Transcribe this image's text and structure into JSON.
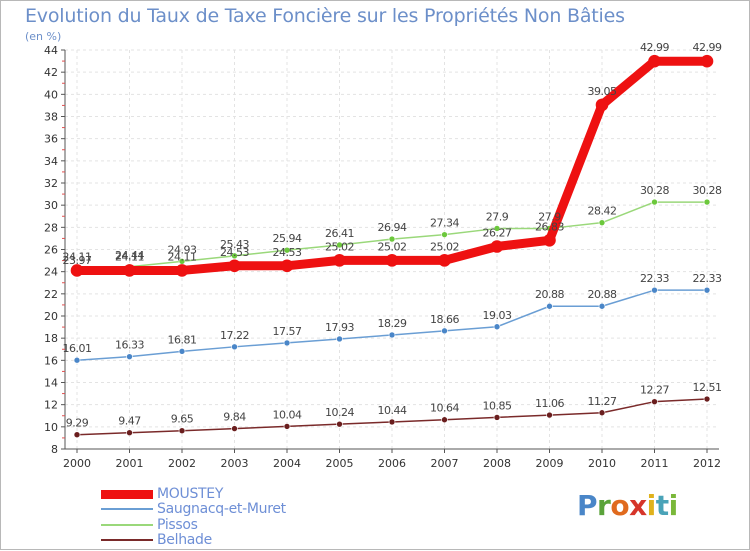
{
  "title": "Evolution du Taux de Taxe Foncière sur les Propriétés Non Bâties",
  "unit": "(en %)",
  "logo": {
    "letters": [
      {
        "ch": "P",
        "color": "#4a86c8"
      },
      {
        "ch": "r",
        "color": "#5aa33a"
      },
      {
        "ch": "o",
        "color": "#e06a1e"
      },
      {
        "ch": "x",
        "color": "#d6352a"
      },
      {
        "ch": "i",
        "color": "#e0b21c"
      },
      {
        "ch": "t",
        "color": "#4aa3b8"
      },
      {
        "ch": "i",
        "color": "#7ab83a"
      }
    ]
  },
  "chart_data": {
    "type": "line",
    "categories": [
      "2000",
      "2001",
      "2002",
      "2003",
      "2004",
      "2005",
      "2006",
      "2007",
      "2008",
      "2009",
      "2010",
      "2011",
      "2012"
    ],
    "ylim": [
      8,
      44
    ],
    "yticks": [
      8,
      10,
      12,
      14,
      16,
      18,
      20,
      22,
      24,
      26,
      28,
      30,
      32,
      34,
      36,
      38,
      40,
      42,
      44
    ],
    "series": [
      {
        "name": "Belhade",
        "color": "#7a2a2a",
        "point_color": "#6a1e1e",
        "values": [
          9.29,
          9.47,
          9.65,
          9.84,
          10.04,
          10.24,
          10.44,
          10.64,
          10.85,
          11.06,
          11.27,
          12.27,
          12.51
        ],
        "labels": [
          "9.29",
          "9.47",
          "9.65",
          "9.84",
          "10.04",
          "10.24",
          "10.44",
          "10.64",
          "10.85",
          "11.06",
          "11.27",
          "12.27",
          "12.51"
        ]
      },
      {
        "name": "Saugnacq-et-Muret",
        "color": "#6a9ed4",
        "point_color": "#4a86c8",
        "values": [
          16.01,
          16.33,
          16.81,
          17.22,
          17.57,
          17.93,
          18.29,
          18.66,
          19.03,
          20.88,
          20.88,
          22.33,
          22.33
        ],
        "labels": [
          "16.01",
          "16.33",
          "16.81",
          "17.22",
          "17.57",
          "17.93",
          "18.29",
          "18.66",
          "19.03",
          "20.88",
          "20.88",
          "22.33",
          "22.33"
        ]
      },
      {
        "name": "Pissos",
        "color": "#9ad87a",
        "point_color": "#6cc83c",
        "values": [
          23.97,
          24.44,
          24.93,
          25.43,
          25.94,
          26.41,
          26.94,
          27.34,
          27.9,
          27.9,
          28.42,
          30.28,
          30.28
        ],
        "labels": [
          "23.97",
          "24.44",
          "24.93",
          "25.43",
          "25.94",
          "26.41",
          "26.94",
          "27.34",
          "27.9",
          "27.9",
          "28.42",
          "30.28",
          "30.28"
        ]
      },
      {
        "name": "MOUSTEY",
        "color": "#ee1111",
        "point_color": "#ee1111",
        "values": [
          24.11,
          24.11,
          24.11,
          24.53,
          24.53,
          25.02,
          25.02,
          25.02,
          26.27,
          26.83,
          39.05,
          42.99,
          42.99
        ],
        "labels": [
          "24.11",
          "24.11",
          "24.11",
          "24.53",
          "24.53",
          "25.02",
          "25.02",
          "25.02",
          "26.27",
          "26.83",
          "39.05",
          "42.99",
          "42.99"
        ]
      }
    ]
  }
}
